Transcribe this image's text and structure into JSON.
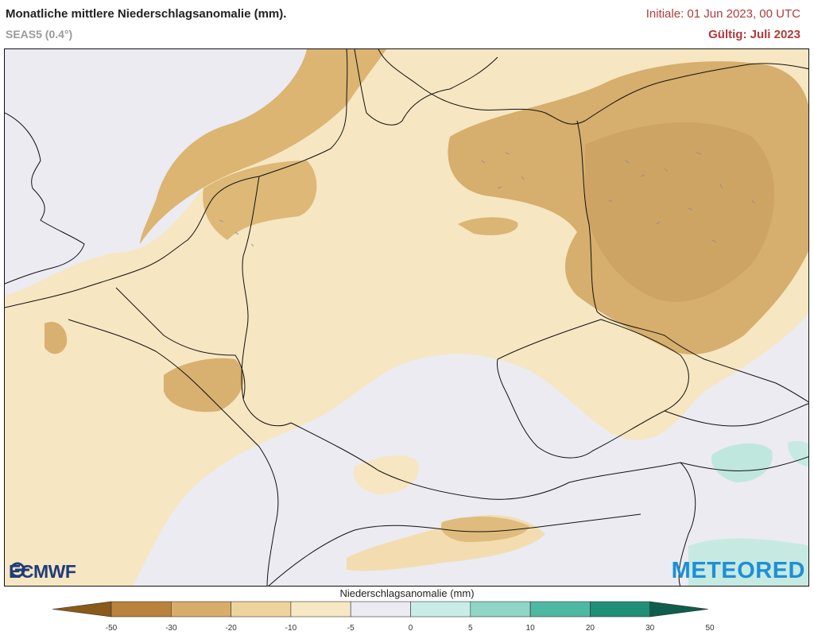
{
  "header": {
    "title": "Monatliche mittlere Niederschlagsanomalie (mm).",
    "subtitle": "SEAS5 (0.4°)",
    "initial": "Initiale: 01 Jun 2023, 00 UTC",
    "valid": "Gültig: Juli 2023"
  },
  "logos": {
    "left": "ECMWF",
    "right": "METEORED"
  },
  "legend": {
    "title": "Niederschlagsanomalie (mm)",
    "ticks": [
      "-50",
      "-30",
      "-20",
      "-10",
      "-5",
      "0",
      "5",
      "10",
      "20",
      "30",
      "50"
    ],
    "colors": [
      "#8a5a1a",
      "#b9823c",
      "#d8ad6a",
      "#eed49c",
      "#f7e8c4",
      "#ebebf1",
      "#c9ece6",
      "#8fd6c6",
      "#4fb8a3",
      "#1f8f78",
      "#0d5e4d"
    ]
  }
}
